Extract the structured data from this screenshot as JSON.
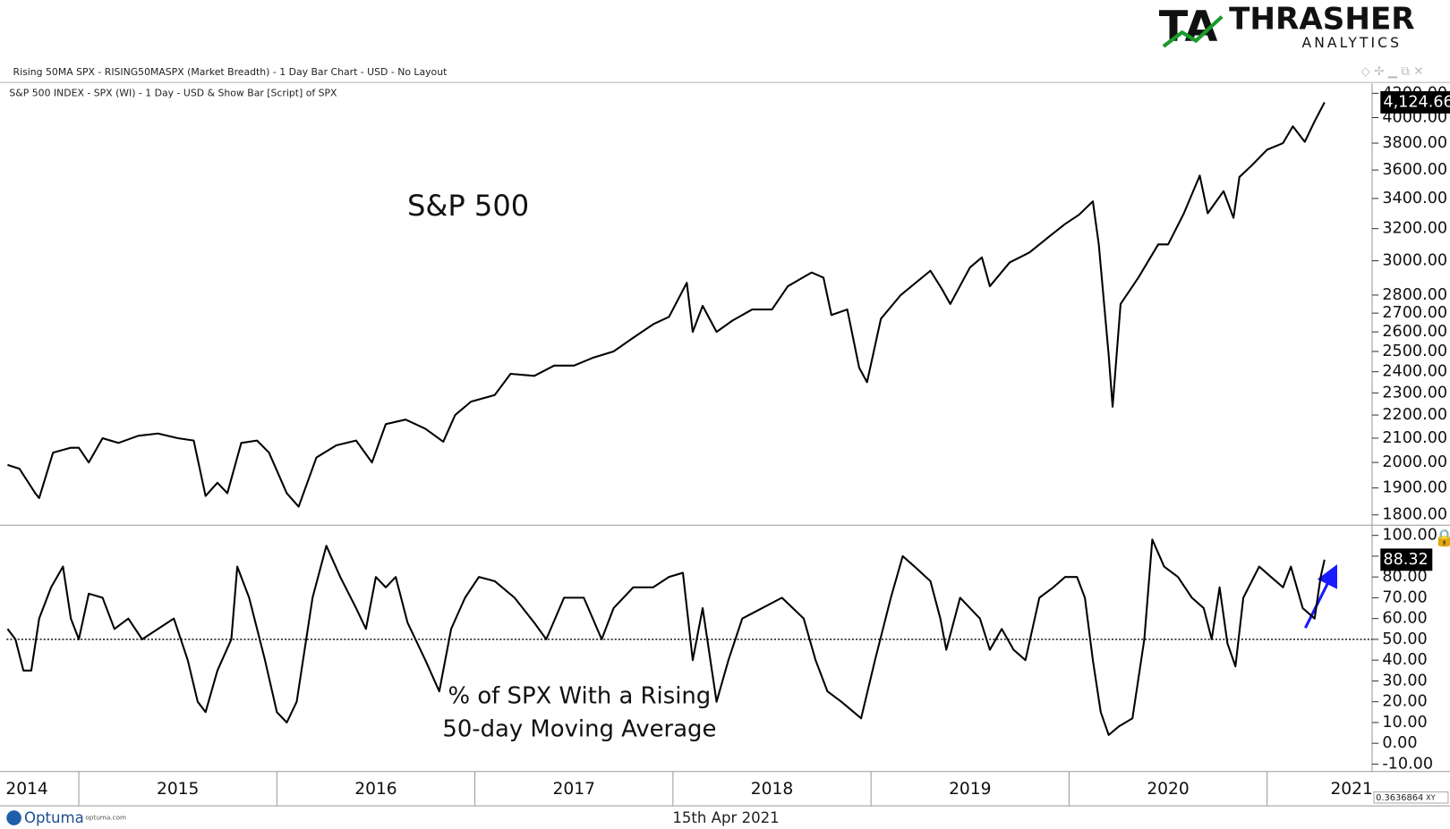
{
  "header": {
    "title": "Rising 50MA SPX - RISING50MASPX (Market Breadth) - 1 Day Bar Chart - USD - No Layout"
  },
  "logo": {
    "mark": "TA",
    "name": "THRASHER",
    "tagline": "ANALYTICS"
  },
  "footer": {
    "brand": "Optuma",
    "site": "optuma.com",
    "date": "15th Apr 2021",
    "zoom": "0.3636864",
    "mode": "XY"
  },
  "chart_data": [
    {
      "type": "line",
      "subtitle": "S&P 500 INDEX - SPX (WI) - 1 Day - USD & Show Bar [Script] of SPX",
      "annotation": "S&P 500",
      "log_scale": true,
      "xlim": [
        2014.635,
        2021.53
      ],
      "ylim": [
        1763,
        4285
      ],
      "yticks": [
        {
          "value": 1800,
          "label": "1800.00"
        },
        {
          "value": 1900,
          "label": "1900.00"
        },
        {
          "value": 2000,
          "label": "2000.00"
        },
        {
          "value": 2100,
          "label": "2100.00"
        },
        {
          "value": 2200,
          "label": "2200.00"
        },
        {
          "value": 2300,
          "label": "2300.00"
        },
        {
          "value": 2400,
          "label": "2400.00"
        },
        {
          "value": 2500,
          "label": "2500.00"
        },
        {
          "value": 2600,
          "label": "2600.00"
        },
        {
          "value": 2700,
          "label": "2700.00"
        },
        {
          "value": 2800,
          "label": "2800.00"
        },
        {
          "value": 3000,
          "label": "3000.00"
        },
        {
          "value": 3200,
          "label": "3200.00"
        },
        {
          "value": 3400,
          "label": "3400.00"
        },
        {
          "value": 3600,
          "label": "3600.00"
        },
        {
          "value": 3800,
          "label": "3800.00"
        },
        {
          "value": 4000,
          "label": "4000.00"
        },
        {
          "value": 4200,
          "label": "4200.00"
        }
      ],
      "x": [
        2014.64,
        2014.7,
        2014.78,
        2014.8,
        2014.87,
        2014.96,
        2015.0,
        2015.05,
        2015.12,
        2015.2,
        2015.3,
        2015.4,
        2015.5,
        2015.58,
        2015.64,
        2015.7,
        2015.75,
        2015.82,
        2015.9,
        2015.96,
        2016.05,
        2016.11,
        2016.2,
        2016.3,
        2016.4,
        2016.48,
        2016.55,
        2016.65,
        2016.75,
        2016.84,
        2016.9,
        2016.98,
        2017.1,
        2017.18,
        2017.3,
        2017.4,
        2017.5,
        2017.6,
        2017.7,
        2017.8,
        2017.9,
        2017.98,
        2018.07,
        2018.1,
        2018.15,
        2018.22,
        2018.3,
        2018.4,
        2018.5,
        2018.58,
        2018.7,
        2018.76,
        2018.8,
        2018.88,
        2018.94,
        2018.98,
        2019.05,
        2019.15,
        2019.3,
        2019.36,
        2019.4,
        2019.5,
        2019.56,
        2019.6,
        2019.7,
        2019.8,
        2019.9,
        2019.98,
        2020.05,
        2020.12,
        2020.15,
        2020.2,
        2020.22,
        2020.26,
        2020.35,
        2020.45,
        2020.5,
        2020.58,
        2020.66,
        2020.7,
        2020.78,
        2020.83,
        2020.86,
        2020.92,
        2021.0,
        2021.08,
        2021.13,
        2021.19,
        2021.24,
        2021.29
      ],
      "series": [
        {
          "name": "SPX",
          "color": "#000000",
          "last_value_label": "4,124.66",
          "values": [
            1990,
            1975,
            1880,
            1862,
            2040,
            2060,
            2060,
            2000,
            2100,
            2080,
            2110,
            2120,
            2100,
            2090,
            1870,
            1920,
            1880,
            2080,
            2090,
            2040,
            1880,
            1830,
            2020,
            2070,
            2090,
            2000,
            2160,
            2180,
            2140,
            2085,
            2200,
            2260,
            2290,
            2390,
            2380,
            2430,
            2430,
            2470,
            2500,
            2570,
            2640,
            2680,
            2870,
            2600,
            2740,
            2600,
            2660,
            2720,
            2720,
            2850,
            2930,
            2900,
            2690,
            2720,
            2420,
            2350,
            2670,
            2800,
            2940,
            2830,
            2750,
            2960,
            3020,
            2850,
            2990,
            3050,
            3150,
            3230,
            3290,
            3380,
            3100,
            2480,
            2237,
            2750,
            2900,
            3100,
            3100,
            3300,
            3560,
            3300,
            3450,
            3270,
            3550,
            3630,
            3750,
            3800,
            3930,
            3810,
            3970,
            4124.66
          ]
        }
      ]
    },
    {
      "type": "line",
      "annotation": [
        "% of SPX With a Rising",
        "50-day Moving Average"
      ],
      "xlim": [
        2014.635,
        2021.53
      ],
      "ylim": [
        -13.6,
        104.9
      ],
      "hline": 50,
      "xticks": [
        {
          "value": 2014,
          "label": "2014"
        },
        {
          "value": 2015,
          "label": "2015"
        },
        {
          "value": 2016,
          "label": "2016"
        },
        {
          "value": 2017,
          "label": "2017"
        },
        {
          "value": 2018,
          "label": "2018"
        },
        {
          "value": 2019,
          "label": "2019"
        },
        {
          "value": 2020,
          "label": "2020"
        },
        {
          "value": 2021,
          "label": "2021"
        }
      ],
      "yticks": [
        {
          "value": -10,
          "label": "-10.00"
        },
        {
          "value": 0,
          "label": "0.00"
        },
        {
          "value": 10,
          "label": "10.00"
        },
        {
          "value": 20,
          "label": "20.00"
        },
        {
          "value": 30,
          "label": "30.00"
        },
        {
          "value": 40,
          "label": "40.00"
        },
        {
          "value": 50,
          "label": "50.00"
        },
        {
          "value": 60,
          "label": "60.00"
        },
        {
          "value": 70,
          "label": "70.00"
        },
        {
          "value": 80,
          "label": "80.00"
        },
        {
          "value": 90,
          "label": "90.00"
        },
        {
          "value": 100,
          "label": "100.00"
        }
      ],
      "x": [
        2014.64,
        2014.68,
        2014.72,
        2014.76,
        2014.8,
        2014.86,
        2014.92,
        2014.96,
        2015.0,
        2015.05,
        2015.12,
        2015.18,
        2015.25,
        2015.32,
        2015.4,
        2015.48,
        2015.55,
        2015.6,
        2015.64,
        2015.7,
        2015.77,
        2015.8,
        2015.86,
        2015.94,
        2016.0,
        2016.05,
        2016.1,
        2016.18,
        2016.25,
        2016.32,
        2016.4,
        2016.45,
        2016.5,
        2016.55,
        2016.6,
        2016.66,
        2016.75,
        2016.82,
        2016.88,
        2016.95,
        2017.02,
        2017.1,
        2017.2,
        2017.3,
        2017.36,
        2017.45,
        2017.55,
        2017.64,
        2017.7,
        2017.8,
        2017.9,
        2017.98,
        2018.05,
        2018.1,
        2018.15,
        2018.22,
        2018.28,
        2018.35,
        2018.45,
        2018.55,
        2018.66,
        2018.72,
        2018.78,
        2018.85,
        2018.95,
        2019.02,
        2019.1,
        2019.16,
        2019.22,
        2019.3,
        2019.35,
        2019.38,
        2019.45,
        2019.55,
        2019.6,
        2019.66,
        2019.72,
        2019.78,
        2019.85,
        2019.92,
        2019.98,
        2020.04,
        2020.08,
        2020.12,
        2020.16,
        2020.2,
        2020.25,
        2020.32,
        2020.38,
        2020.42,
        2020.48,
        2020.55,
        2020.62,
        2020.68,
        2020.72,
        2020.76,
        2020.8,
        2020.84,
        2020.88,
        2020.96,
        2021.02,
        2021.08,
        2021.12,
        2021.18,
        2021.24,
        2021.27,
        2021.29
      ],
      "series": [
        {
          "name": "RISING50MASPX",
          "color": "#000000",
          "last_value_label": "88.32",
          "values": [
            55,
            50,
            35,
            35,
            60,
            75,
            85,
            60,
            50,
            72,
            70,
            55,
            60,
            50,
            55,
            60,
            40,
            20,
            15,
            35,
            50,
            85,
            70,
            40,
            15,
            10,
            20,
            70,
            95,
            80,
            65,
            55,
            80,
            75,
            80,
            58,
            40,
            25,
            55,
            70,
            80,
            78,
            70,
            58,
            50,
            70,
            70,
            50,
            65,
            75,
            75,
            80,
            82,
            40,
            65,
            20,
            40,
            60,
            65,
            70,
            60,
            40,
            25,
            20,
            12,
            40,
            70,
            90,
            85,
            78,
            60,
            45,
            70,
            60,
            45,
            55,
            45,
            40,
            70,
            75,
            80,
            80,
            70,
            40,
            15,
            4,
            8,
            12,
            50,
            98,
            85,
            80,
            70,
            65,
            50,
            75,
            48,
            37,
            70,
            85,
            80,
            75,
            85,
            65,
            60,
            80,
            88.32
          ]
        }
      ]
    }
  ]
}
